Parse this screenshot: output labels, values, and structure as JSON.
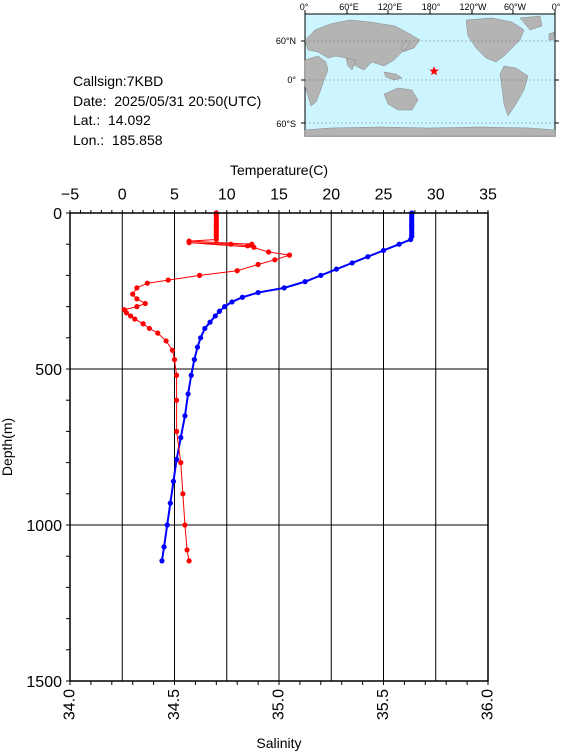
{
  "info": {
    "callsign": "Callsign:7KBD",
    "date": "Date:  2025/05/31 20:50(UTC)",
    "lat": "Lat.:  14.092",
    "lon": "Lon.:  185.858"
  },
  "map": {
    "lon_labels": [
      "0°",
      "60°E",
      "120°E",
      "180°",
      "120°W",
      "60°W",
      "0°"
    ],
    "lat_labels": [
      "60°N",
      "0°",
      "60°S"
    ],
    "ocean_color": "#ccf5ff",
    "land_color": "#b4b4b4",
    "marker_color": "#ff0000",
    "marker_icon": "star-icon",
    "station_lon": 185.858,
    "station_lat": 14.092
  },
  "chart_data": {
    "type": "line",
    "ylabel": "Depth(m)",
    "yticks": [
      "0",
      "500",
      "1000",
      "1500"
    ],
    "ylim": [
      0,
      1500
    ],
    "y_inverted": true,
    "grid": true,
    "top_axis": {
      "label": "Temperature(C)",
      "ticks": [
        "−5",
        "0",
        "5",
        "10",
        "15",
        "20",
        "25",
        "30",
        "35"
      ],
      "range": [
        -5,
        35
      ]
    },
    "bottom_axis": {
      "label": "Salinity",
      "ticks": [
        "34.0",
        "34.5",
        "35.0",
        "35.5",
        "36.0"
      ],
      "range": [
        34.0,
        36.0
      ]
    },
    "series": [
      {
        "color": "#0000ff",
        "axis": "top",
        "points": [
          [
            27.7,
            0
          ],
          [
            27.7,
            40
          ],
          [
            27.7,
            75
          ],
          [
            27.6,
            85
          ],
          [
            26.5,
            100
          ],
          [
            25.0,
            120
          ],
          [
            23.5,
            140
          ],
          [
            22.0,
            160
          ],
          [
            20.5,
            180
          ],
          [
            19.0,
            200
          ],
          [
            17.5,
            220
          ],
          [
            15.5,
            240
          ],
          [
            13.0,
            255
          ],
          [
            11.5,
            270
          ],
          [
            10.5,
            285
          ],
          [
            9.8,
            300
          ],
          [
            9.3,
            315
          ],
          [
            8.9,
            330
          ],
          [
            8.4,
            350
          ],
          [
            7.9,
            370
          ],
          [
            7.5,
            400
          ],
          [
            7.2,
            430
          ],
          [
            6.9,
            470
          ],
          [
            6.6,
            520
          ],
          [
            6.3,
            580
          ],
          [
            6.0,
            650
          ],
          [
            5.6,
            720
          ],
          [
            5.2,
            790
          ],
          [
            4.9,
            860
          ],
          [
            4.6,
            930
          ],
          [
            4.3,
            1000
          ],
          [
            4.0,
            1070
          ],
          [
            3.8,
            1115
          ]
        ]
      },
      {
        "color": "#ff0000",
        "axis": "bottom",
        "points": [
          [
            34.7,
            0
          ],
          [
            34.7,
            40
          ],
          [
            34.7,
            75
          ],
          [
            34.7,
            85
          ],
          [
            34.57,
            90
          ],
          [
            34.87,
            100
          ],
          [
            34.88,
            110
          ],
          [
            34.57,
            95
          ],
          [
            34.77,
            100
          ],
          [
            34.85,
            105
          ],
          [
            34.95,
            125
          ],
          [
            35.05,
            135
          ],
          [
            34.98,
            150
          ],
          [
            34.9,
            165
          ],
          [
            34.8,
            185
          ],
          [
            34.62,
            200
          ],
          [
            34.47,
            215
          ],
          [
            34.37,
            225
          ],
          [
            34.32,
            240
          ],
          [
            34.3,
            260
          ],
          [
            34.32,
            275
          ],
          [
            34.36,
            290
          ],
          [
            34.32,
            300
          ],
          [
            34.26,
            310
          ],
          [
            34.27,
            320
          ],
          [
            34.29,
            330
          ],
          [
            34.31,
            340
          ],
          [
            34.35,
            355
          ],
          [
            34.38,
            370
          ],
          [
            34.42,
            385
          ],
          [
            34.46,
            410
          ],
          [
            34.49,
            440
          ],
          [
            34.5,
            470
          ],
          [
            34.51,
            520
          ],
          [
            34.51,
            600
          ],
          [
            34.51,
            700
          ],
          [
            34.53,
            800
          ],
          [
            34.54,
            900
          ],
          [
            34.55,
            1000
          ],
          [
            34.56,
            1080
          ],
          [
            34.57,
            1115
          ]
        ]
      }
    ]
  }
}
